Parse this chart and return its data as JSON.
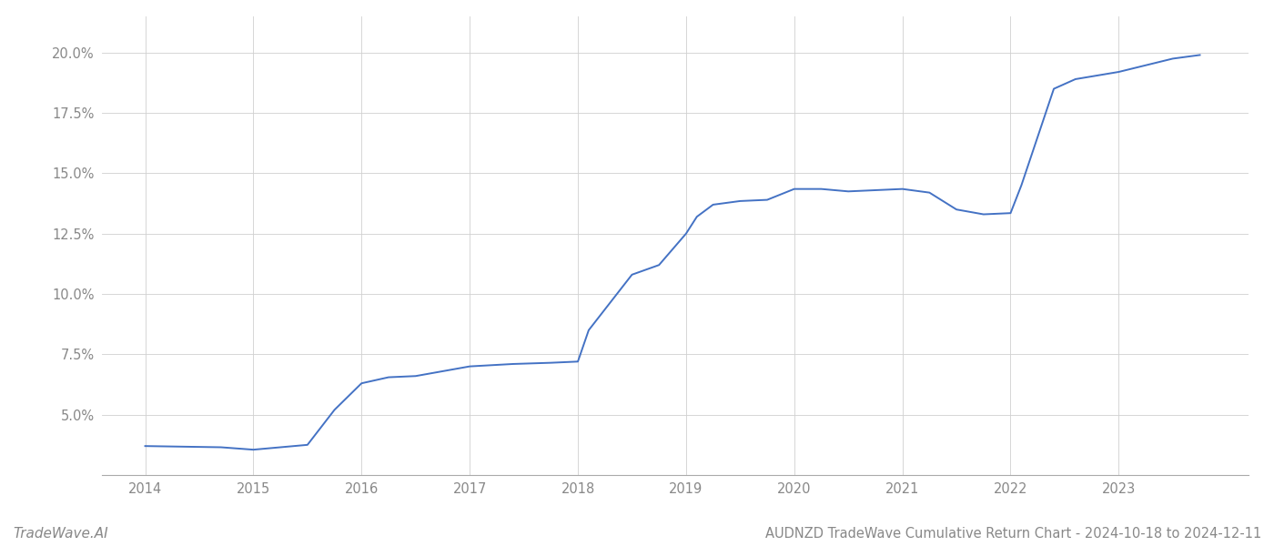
{
  "title": "AUDNZD TradeWave Cumulative Return Chart - 2024-10-18 to 2024-12-11",
  "watermark": "TradeWave.AI",
  "line_color": "#4472c4",
  "background_color": "#ffffff",
  "grid_color": "#d0d0d0",
  "x_values": [
    2014.0,
    2014.7,
    2015.0,
    2015.5,
    2015.75,
    2016.0,
    2016.25,
    2016.5,
    2017.0,
    2017.4,
    2017.75,
    2018.0,
    2018.1,
    2018.5,
    2018.75,
    2019.0,
    2019.1,
    2019.25,
    2019.5,
    2019.75,
    2020.0,
    2020.25,
    2020.5,
    2020.75,
    2021.0,
    2021.25,
    2021.5,
    2021.75,
    2022.0,
    2022.1,
    2022.4,
    2022.6,
    2023.0,
    2023.5,
    2023.75
  ],
  "y_values": [
    3.7,
    3.65,
    3.55,
    3.75,
    5.2,
    6.3,
    6.55,
    6.6,
    7.0,
    7.1,
    7.15,
    7.2,
    8.5,
    10.8,
    11.2,
    12.5,
    13.2,
    13.7,
    13.85,
    13.9,
    14.35,
    14.35,
    14.25,
    14.3,
    14.35,
    14.2,
    13.5,
    13.3,
    13.35,
    14.5,
    18.5,
    18.9,
    19.2,
    19.75,
    19.9
  ],
  "xlim": [
    2013.6,
    2024.2
  ],
  "ylim": [
    2.5,
    21.5
  ],
  "ytick_labels": [
    "5.0%",
    "7.5%",
    "10.0%",
    "12.5%",
    "15.0%",
    "17.5%",
    "20.0%"
  ],
  "ytick_values": [
    5.0,
    7.5,
    10.0,
    12.5,
    15.0,
    17.5,
    20.0
  ],
  "xtick_labels": [
    "2014",
    "2015",
    "2016",
    "2017",
    "2018",
    "2019",
    "2020",
    "2021",
    "2022",
    "2023"
  ],
  "xtick_values": [
    2014,
    2015,
    2016,
    2017,
    2018,
    2019,
    2020,
    2021,
    2022,
    2023
  ],
  "line_width": 1.4,
  "label_fontsize": 10.5,
  "title_fontsize": 10.5,
  "watermark_fontsize": 11,
  "tick_color": "#888888",
  "spine_color": "#aaaaaa"
}
